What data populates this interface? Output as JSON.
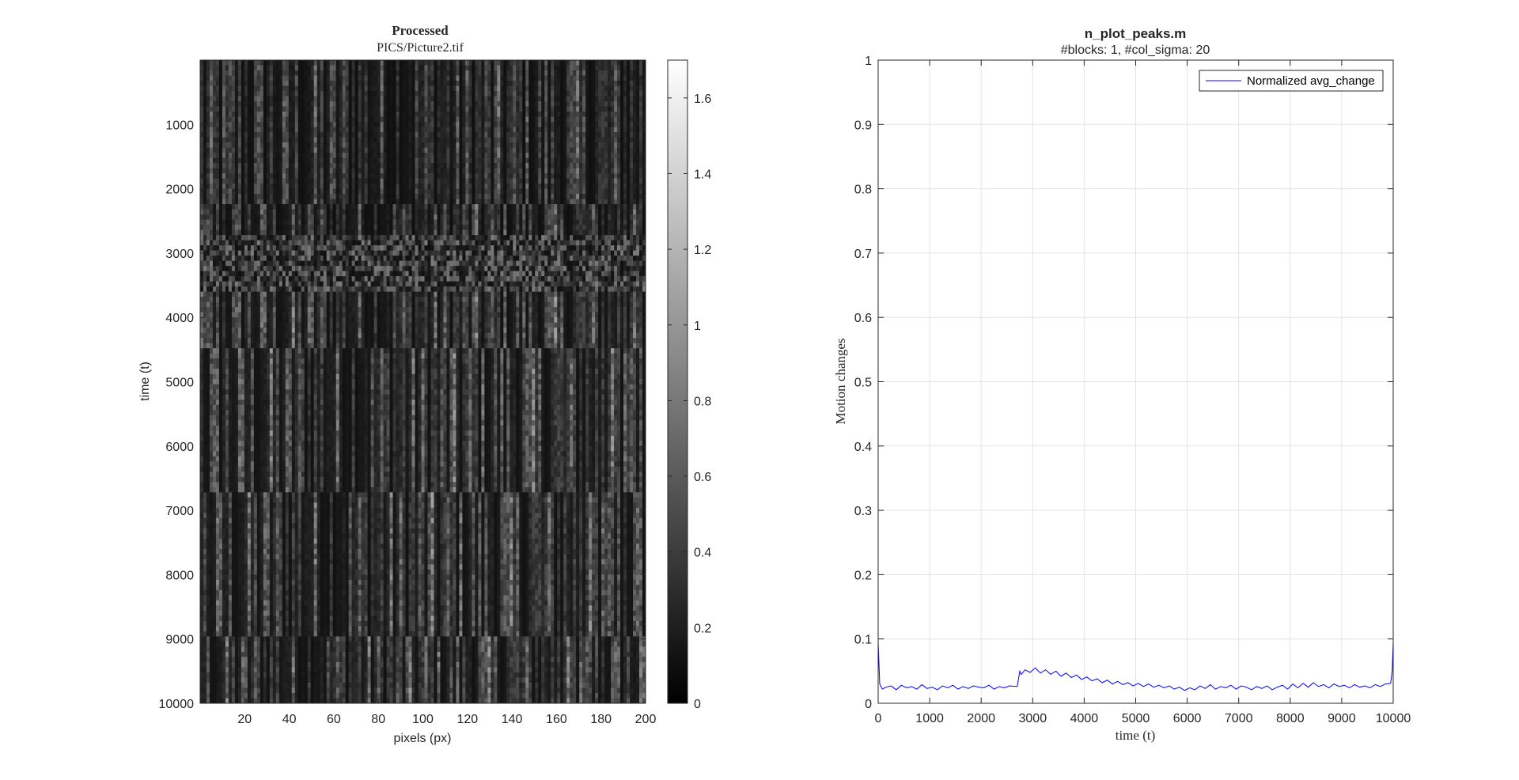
{
  "chart_data": [
    {
      "type": "heatmap",
      "title": "Processed",
      "subtitle": "PICS/Picture2.tif",
      "xlabel": "pixels (px)",
      "ylabel": "time (t)",
      "xlim": [
        0,
        200
      ],
      "ylim": [
        0,
        10000
      ],
      "y_direction": "reversed",
      "xticks": [
        "20",
        "40",
        "60",
        "80",
        "100",
        "120",
        "140",
        "160",
        "180",
        "200"
      ],
      "yticks": [
        "1000",
        "2000",
        "3000",
        "4000",
        "5000",
        "6000",
        "7000",
        "8000",
        "9000",
        "10000"
      ],
      "colormap": "gray",
      "colorbar": {
        "limits": [
          0,
          1.7
        ],
        "ticks": [
          "0",
          "0.2",
          "0.4",
          "0.6",
          "0.8",
          "1",
          "1.2",
          "1.4",
          "1.6"
        ]
      },
      "bands": [
        {
          "t_start": 0,
          "t_end": 2750,
          "pattern": "vertical streaks",
          "mean_intensity": 0.3
        },
        {
          "t_start": 2750,
          "t_end": 3600,
          "pattern": "speckle",
          "mean_intensity": 0.45
        },
        {
          "t_start": 3600,
          "t_end": 10000,
          "pattern": "vertical streaks",
          "mean_intensity": 0.35
        }
      ]
    },
    {
      "type": "line",
      "title": "n_plot_peaks.m",
      "subtitle": "#blocks: 1, #col_sigma: 20",
      "xlabel": "time (t)",
      "ylabel": "Motion changes",
      "xlim": [
        0,
        10000
      ],
      "ylim": [
        0,
        1
      ],
      "xticks": [
        "0",
        "1000",
        "2000",
        "3000",
        "4000",
        "5000",
        "6000",
        "7000",
        "8000",
        "9000",
        "10000"
      ],
      "yticks": [
        "0",
        "0.1",
        "0.2",
        "0.3",
        "0.4",
        "0.5",
        "0.6",
        "0.7",
        "0.8",
        "0.9",
        "1"
      ],
      "grid": true,
      "legend_position": "top-right",
      "series": [
        {
          "name": "Normalized avg_change",
          "color": "#0000ff",
          "x": [
            0,
            30,
            80,
            150,
            250,
            350,
            450,
            550,
            650,
            750,
            850,
            950,
            1050,
            1150,
            1250,
            1350,
            1450,
            1550,
            1650,
            1750,
            1850,
            1950,
            2050,
            2150,
            2250,
            2350,
            2450,
            2550,
            2700,
            2750,
            2780,
            2850,
            2950,
            3050,
            3150,
            3250,
            3350,
            3450,
            3550,
            3650,
            3750,
            3850,
            3950,
            4050,
            4150,
            4250,
            4350,
            4450,
            4550,
            4650,
            4750,
            4850,
            4950,
            5050,
            5150,
            5250,
            5350,
            5450,
            5550,
            5650,
            5750,
            5850,
            5950,
            6050,
            6150,
            6250,
            6350,
            6450,
            6550,
            6650,
            6750,
            6850,
            6950,
            7050,
            7150,
            7250,
            7350,
            7450,
            7550,
            7650,
            7750,
            7850,
            7950,
            8050,
            8150,
            8250,
            8350,
            8450,
            8550,
            8650,
            8750,
            8850,
            8950,
            9050,
            9150,
            9250,
            9350,
            9450,
            9550,
            9650,
            9750,
            9850,
            9950,
            9980,
            10000
          ],
          "y": [
            0.095,
            0.03,
            0.022,
            0.025,
            0.027,
            0.021,
            0.028,
            0.024,
            0.026,
            0.022,
            0.029,
            0.023,
            0.025,
            0.021,
            0.027,
            0.024,
            0.028,
            0.022,
            0.026,
            0.023,
            0.027,
            0.025,
            0.024,
            0.028,
            0.022,
            0.026,
            0.024,
            0.027,
            0.026,
            0.05,
            0.045,
            0.052,
            0.048,
            0.055,
            0.047,
            0.052,
            0.045,
            0.05,
            0.042,
            0.047,
            0.04,
            0.044,
            0.037,
            0.041,
            0.035,
            0.038,
            0.032,
            0.036,
            0.03,
            0.034,
            0.029,
            0.032,
            0.027,
            0.031,
            0.026,
            0.03,
            0.025,
            0.028,
            0.024,
            0.027,
            0.022,
            0.025,
            0.02,
            0.024,
            0.021,
            0.027,
            0.023,
            0.029,
            0.022,
            0.026,
            0.024,
            0.028,
            0.022,
            0.027,
            0.025,
            0.021,
            0.026,
            0.023,
            0.027,
            0.021,
            0.025,
            0.028,
            0.022,
            0.03,
            0.024,
            0.031,
            0.025,
            0.032,
            0.026,
            0.029,
            0.024,
            0.03,
            0.026,
            0.028,
            0.024,
            0.029,
            0.025,
            0.027,
            0.024,
            0.029,
            0.026,
            0.03,
            0.031,
            0.05,
            0.095
          ]
        }
      ]
    }
  ]
}
